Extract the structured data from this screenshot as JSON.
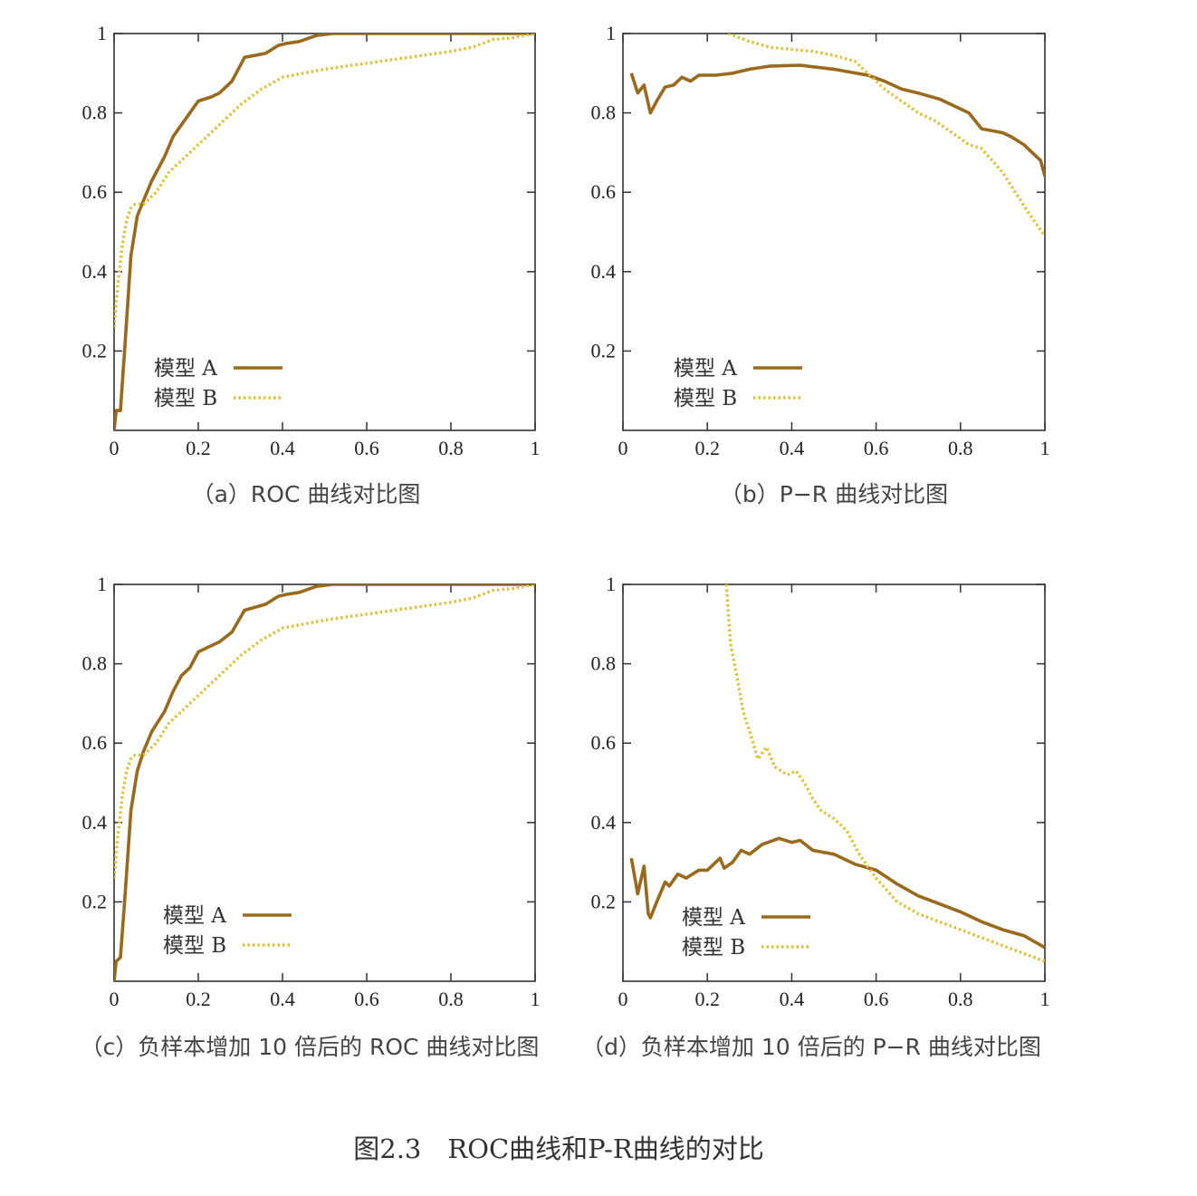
{
  "figure": {
    "title": "图2.3　ROC曲线和P-R曲线的对比",
    "colors": {
      "model_a": "#9a6a1c",
      "model_b": "#e0c235",
      "axis": "#333333"
    }
  },
  "chart_data": [
    {
      "type": "line",
      "panel": "a",
      "caption": "（a）ROC 曲线对比图",
      "xlim": [
        0,
        1
      ],
      "ylim": [
        0,
        1
      ],
      "xticks": [
        "0",
        "0.2",
        "0.4",
        "0.6",
        "0.8",
        "1"
      ],
      "yticks": [
        "0.2",
        "0.4",
        "0.6",
        "0.8",
        "1"
      ],
      "grid": false,
      "legend_position": "bottom-left",
      "series": [
        {
          "name": "模型 A",
          "style": "solid",
          "x": [
            0,
            0.005,
            0.015,
            0.025,
            0.04,
            0.055,
            0.07,
            0.09,
            0.12,
            0.14,
            0.16,
            0.18,
            0.2,
            0.23,
            0.25,
            0.28,
            0.31,
            0.36,
            0.39,
            0.41,
            0.44,
            0.48,
            0.52,
            0.6,
            0.8,
            1.0
          ],
          "y": [
            0.0,
            0.05,
            0.05,
            0.2,
            0.44,
            0.54,
            0.58,
            0.63,
            0.69,
            0.74,
            0.77,
            0.8,
            0.83,
            0.84,
            0.85,
            0.88,
            0.94,
            0.95,
            0.97,
            0.975,
            0.98,
            0.995,
            1.0,
            1.0,
            1.0,
            1.0
          ]
        },
        {
          "name": "模型 B",
          "style": "dotted",
          "x": [
            0,
            0.01,
            0.02,
            0.03,
            0.04,
            0.05,
            0.07,
            0.1,
            0.13,
            0.16,
            0.2,
            0.25,
            0.3,
            0.35,
            0.4,
            0.45,
            0.5,
            0.6,
            0.7,
            0.8,
            0.85,
            0.9,
            0.95,
            1.0
          ],
          "y": [
            0.26,
            0.38,
            0.47,
            0.53,
            0.56,
            0.57,
            0.57,
            0.6,
            0.65,
            0.68,
            0.72,
            0.77,
            0.82,
            0.86,
            0.89,
            0.9,
            0.91,
            0.925,
            0.94,
            0.955,
            0.965,
            0.985,
            0.99,
            1.0
          ]
        }
      ]
    },
    {
      "type": "line",
      "panel": "b",
      "caption": "（b）P−R 曲线对比图",
      "xlim": [
        0,
        1
      ],
      "ylim": [
        0,
        1
      ],
      "xticks": [
        "0",
        "0.2",
        "0.4",
        "0.6",
        "0.8",
        "1"
      ],
      "yticks": [
        "0.2",
        "0.4",
        "0.6",
        "0.8",
        "1"
      ],
      "grid": false,
      "legend_position": "bottom-left",
      "series": [
        {
          "name": "模型 A",
          "style": "solid",
          "x": [
            0.02,
            0.035,
            0.05,
            0.065,
            0.08,
            0.1,
            0.12,
            0.14,
            0.16,
            0.18,
            0.22,
            0.26,
            0.3,
            0.35,
            0.42,
            0.5,
            0.58,
            0.62,
            0.66,
            0.7,
            0.75,
            0.8,
            0.82,
            0.85,
            0.9,
            0.92,
            0.95,
            0.97,
            0.99,
            1.0
          ],
          "y": [
            0.9,
            0.85,
            0.87,
            0.8,
            0.83,
            0.865,
            0.87,
            0.89,
            0.88,
            0.895,
            0.895,
            0.9,
            0.91,
            0.918,
            0.92,
            0.91,
            0.895,
            0.88,
            0.86,
            0.85,
            0.835,
            0.81,
            0.8,
            0.76,
            0.75,
            0.74,
            0.72,
            0.7,
            0.68,
            0.64
          ]
        },
        {
          "name": "模型 B",
          "style": "dotted",
          "x": [
            0.25,
            0.3,
            0.35,
            0.4,
            0.45,
            0.5,
            0.55,
            0.58,
            0.62,
            0.66,
            0.7,
            0.74,
            0.78,
            0.82,
            0.85,
            0.9,
            0.93,
            0.96,
            1.0
          ],
          "y": [
            1.0,
            0.98,
            0.965,
            0.96,
            0.955,
            0.945,
            0.93,
            0.9,
            0.86,
            0.83,
            0.8,
            0.78,
            0.75,
            0.72,
            0.71,
            0.65,
            0.6,
            0.55,
            0.49
          ]
        }
      ]
    },
    {
      "type": "line",
      "panel": "c",
      "caption": "（c）负样本增加 10 倍后的 ROC 曲线对比图",
      "xlim": [
        0,
        1
      ],
      "ylim": [
        0,
        1
      ],
      "xticks": [
        "0",
        "0.2",
        "0.4",
        "0.6",
        "0.8",
        "1"
      ],
      "yticks": [
        "0.2",
        "0.4",
        "0.6",
        "0.8",
        "1"
      ],
      "grid": false,
      "legend_position": "bottom-left",
      "series": [
        {
          "name": "模型 A",
          "style": "solid",
          "x": [
            0,
            0.005,
            0.015,
            0.025,
            0.04,
            0.055,
            0.07,
            0.09,
            0.12,
            0.14,
            0.16,
            0.18,
            0.2,
            0.23,
            0.25,
            0.28,
            0.31,
            0.36,
            0.39,
            0.41,
            0.44,
            0.48,
            0.52,
            0.6,
            0.8,
            1.0
          ],
          "y": [
            0.0,
            0.05,
            0.06,
            0.2,
            0.43,
            0.53,
            0.58,
            0.63,
            0.68,
            0.73,
            0.77,
            0.79,
            0.83,
            0.845,
            0.855,
            0.88,
            0.935,
            0.95,
            0.97,
            0.975,
            0.98,
            0.995,
            1.0,
            1.0,
            1.0,
            1.0
          ]
        },
        {
          "name": "模型 B",
          "style": "dotted",
          "x": [
            0,
            0.01,
            0.02,
            0.03,
            0.04,
            0.05,
            0.07,
            0.1,
            0.13,
            0.16,
            0.2,
            0.25,
            0.3,
            0.35,
            0.4,
            0.45,
            0.5,
            0.6,
            0.7,
            0.8,
            0.85,
            0.9,
            0.95,
            1.0
          ],
          "y": [
            0.26,
            0.38,
            0.47,
            0.53,
            0.56,
            0.57,
            0.57,
            0.6,
            0.65,
            0.68,
            0.72,
            0.77,
            0.82,
            0.86,
            0.89,
            0.9,
            0.91,
            0.925,
            0.94,
            0.955,
            0.965,
            0.985,
            0.99,
            1.0
          ]
        }
      ]
    },
    {
      "type": "line",
      "panel": "d",
      "caption": "（d）负样本增加 10 倍后的 P−R 曲线对比图",
      "xlim": [
        0,
        1
      ],
      "ylim": [
        0,
        1
      ],
      "xticks": [
        "0",
        "0.2",
        "0.4",
        "0.6",
        "0.8",
        "1"
      ],
      "yticks": [
        "0.2",
        "0.4",
        "0.6",
        "0.8",
        "1"
      ],
      "grid": false,
      "legend_position": "bottom-left",
      "series": [
        {
          "name": "模型 A",
          "style": "solid",
          "x": [
            0.02,
            0.035,
            0.05,
            0.06,
            0.065,
            0.08,
            0.1,
            0.11,
            0.13,
            0.15,
            0.18,
            0.2,
            0.23,
            0.24,
            0.26,
            0.28,
            0.3,
            0.33,
            0.37,
            0.4,
            0.42,
            0.45,
            0.5,
            0.55,
            0.6,
            0.65,
            0.7,
            0.75,
            0.8,
            0.85,
            0.9,
            0.95,
            1.0
          ],
          "y": [
            0.31,
            0.22,
            0.29,
            0.17,
            0.16,
            0.2,
            0.25,
            0.24,
            0.27,
            0.26,
            0.28,
            0.28,
            0.31,
            0.285,
            0.3,
            0.33,
            0.32,
            0.345,
            0.36,
            0.35,
            0.355,
            0.33,
            0.32,
            0.295,
            0.28,
            0.245,
            0.215,
            0.195,
            0.175,
            0.15,
            0.13,
            0.115,
            0.085
          ]
        },
        {
          "name": "模型 B",
          "style": "dotted",
          "x": [
            0.245,
            0.255,
            0.27,
            0.285,
            0.3,
            0.32,
            0.34,
            0.36,
            0.39,
            0.41,
            0.43,
            0.45,
            0.47,
            0.5,
            0.53,
            0.56,
            0.6,
            0.65,
            0.7,
            0.75,
            0.8,
            0.85,
            0.9,
            0.95,
            1.0
          ],
          "y": [
            1.0,
            0.85,
            0.77,
            0.68,
            0.63,
            0.56,
            0.59,
            0.54,
            0.52,
            0.53,
            0.5,
            0.46,
            0.43,
            0.41,
            0.38,
            0.32,
            0.26,
            0.2,
            0.17,
            0.15,
            0.13,
            0.11,
            0.09,
            0.07,
            0.05
          ]
        }
      ]
    }
  ]
}
